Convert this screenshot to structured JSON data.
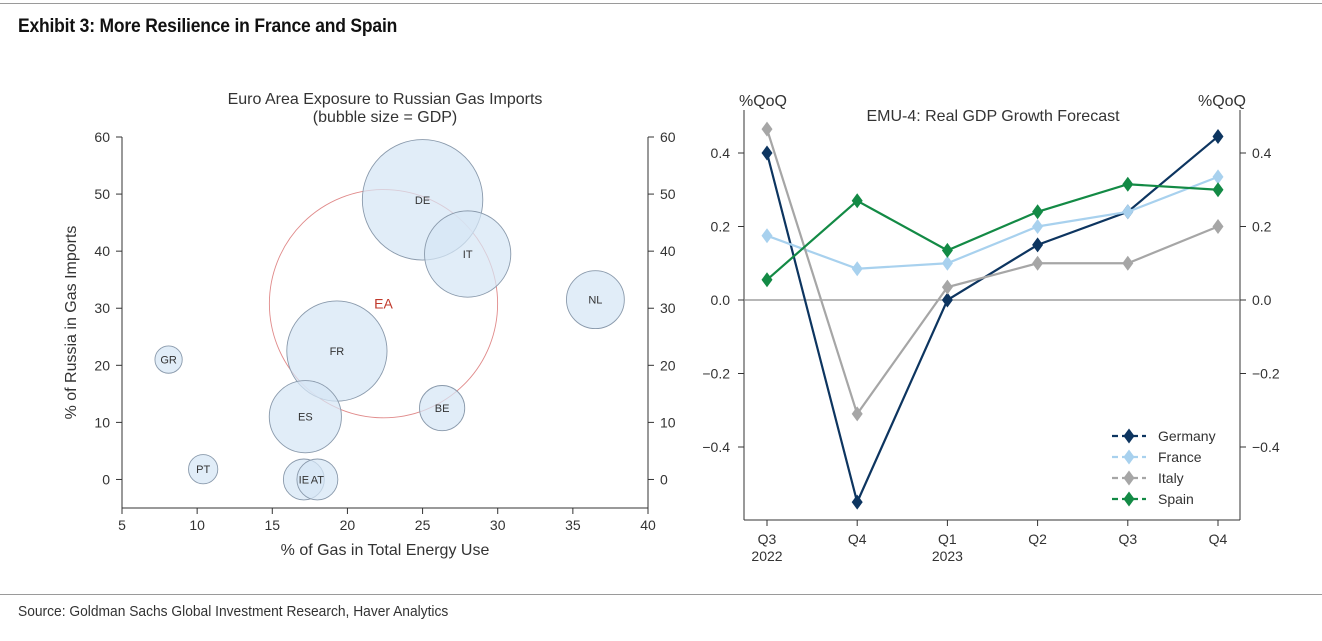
{
  "exhibit": {
    "title": "Exhibit 3: More Resilience in France and Spain",
    "source": "Source: Goldman Sachs Global Investment Research, Haver Analytics"
  },
  "colors": {
    "bubble_fill": "#d6e6f5",
    "bubble_stroke": "#8a9aac",
    "ea_stroke": "#e08a8a",
    "ea_label": "#c0392b",
    "germany": "#0d3560",
    "france": "#a8d1ee",
    "italy": "#a6a6a6",
    "spain": "#138a45"
  },
  "chart_data": [
    {
      "type": "scatter",
      "subtype": "bubble",
      "title": "Euro Area Exposure to Russian Gas Imports",
      "subtitle": "(bubble size = GDP)",
      "xlabel": "% of Gas in Total Energy Use",
      "ylabel": "% of Russia in Gas Imports",
      "xlim": [
        5,
        40
      ],
      "ylim": [
        -5,
        60
      ],
      "xticks": [
        5,
        10,
        15,
        20,
        25,
        30,
        35,
        40
      ],
      "yticks": [
        0,
        10,
        20,
        30,
        40,
        50,
        60
      ],
      "points": [
        {
          "label": "DE",
          "x": 25.0,
          "y": 49,
          "size": 3.9
        },
        {
          "label": "IT",
          "x": 28.0,
          "y": 39.5,
          "size": 2.0
        },
        {
          "label": "FR",
          "x": 19.3,
          "y": 22.5,
          "size": 2.7
        },
        {
          "label": "ES",
          "x": 17.2,
          "y": 11,
          "size": 1.4
        },
        {
          "label": "NL",
          "x": 36.5,
          "y": 31.5,
          "size": 0.9
        },
        {
          "label": "BE",
          "x": 26.3,
          "y": 12.5,
          "size": 0.55
        },
        {
          "label": "GR",
          "x": 8.1,
          "y": 21,
          "size": 0.2
        },
        {
          "label": "PT",
          "x": 10.4,
          "y": 1.8,
          "size": 0.23
        },
        {
          "label": "IE",
          "x": 17.1,
          "y": 0,
          "size": 0.45
        },
        {
          "label": "AT",
          "x": 18.0,
          "y": 0,
          "size": 0.45
        }
      ],
      "aggregate": {
        "label": "EA",
        "x": 22.4,
        "y": 30.8,
        "size": 14.0
      }
    },
    {
      "type": "line",
      "title": "EMU-4: Real GDP Growth Forecast",
      "ylabel_left": "%QoQ",
      "ylabel_right": "%QoQ",
      "ylim": [
        -0.6,
        0.5
      ],
      "yticks": [
        0.4,
        0.2,
        0.0,
        -0.2,
        -0.4
      ],
      "ytick_labels": [
        "0.4",
        "0.2",
        "0.0",
        "−0.2",
        "−0.4"
      ],
      "categories": [
        {
          "top": "Q3",
          "bottom": "2022"
        },
        {
          "top": "Q4",
          "bottom": ""
        },
        {
          "top": "Q1",
          "bottom": "2023"
        },
        {
          "top": "Q2",
          "bottom": ""
        },
        {
          "top": "Q3",
          "bottom": ""
        },
        {
          "top": "Q4",
          "bottom": ""
        }
      ],
      "zero_line": true,
      "legend_position": "bottom-right",
      "series": [
        {
          "name": "Germany",
          "color": "#0d3560",
          "values": [
            0.4,
            -0.55,
            0.0,
            0.15,
            0.24,
            0.445
          ]
        },
        {
          "name": "France",
          "color": "#a8d1ee",
          "values": [
            0.175,
            0.085,
            0.1,
            0.2,
            0.24,
            0.335
          ]
        },
        {
          "name": "Italy",
          "color": "#a6a6a6",
          "values": [
            0.465,
            -0.31,
            0.035,
            0.1,
            0.1,
            0.2
          ]
        },
        {
          "name": "Spain",
          "color": "#138a45",
          "values": [
            0.055,
            0.27,
            0.135,
            0.24,
            0.315,
            0.3
          ]
        }
      ]
    }
  ]
}
